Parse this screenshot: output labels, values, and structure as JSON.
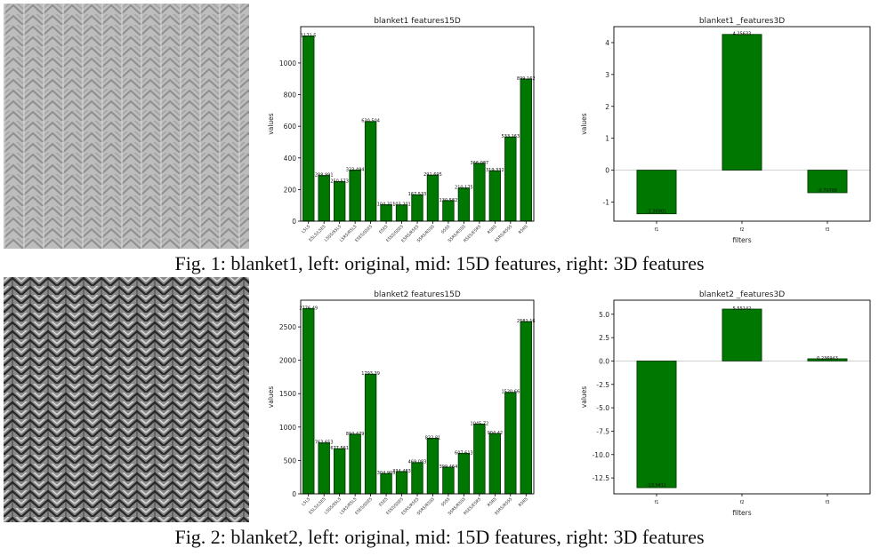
{
  "colors": {
    "bar": "#007700",
    "bar_edge": "#003300",
    "axis": "#000000"
  },
  "figures": [
    {
      "caption": "Fig. 1: blanket1, left: original, mid: 15D features, right: 3D features",
      "texture": {
        "alt": "blanket1 original texture",
        "contrast": "low"
      }
    },
    {
      "caption": "Fig. 2: blanket2, left: original, mid: 15D features, right: 3D features",
      "texture": {
        "alt": "blanket2 original texture",
        "contrast": "high"
      }
    }
  ],
  "chart_data": [
    {
      "type": "bar",
      "title": "blanket1 features15D",
      "xlabel": "",
      "ylabel": "values",
      "categories": [
        "L5L5",
        "E5L5/L5E5",
        "L5S5/S5L5",
        "L5R5/R5L5",
        "E5E5/S5E5",
        "E5E5",
        "E5S5/S5E5",
        "E5R5/R5E5",
        "S5R5/R5S5",
        "S5S5",
        "S5R5/R5S5",
        "R5E5/E5R5",
        "R5R5",
        "S5R5/R5S5",
        "R5R5"
      ],
      "values": [
        1171.5,
        288.991,
        250.573,
        323.494,
        630.504,
        104.311,
        103.201,
        167.533,
        291.695,
        130.582,
        210.175,
        366.087,
        319.332,
        533.163,
        899.162
      ],
      "data_labels": [
        "1171.5",
        "288.991",
        "250.573",
        "323.494",
        "630.504",
        "104.311",
        "103.201",
        "167.533",
        "291.695",
        "130.582",
        "210.175",
        "366.087",
        "319.332",
        "533.163",
        "899.162"
      ],
      "ylim": [
        0,
        1230
      ],
      "yticks": [
        0,
        200,
        400,
        600,
        800,
        1000
      ]
    },
    {
      "type": "bar",
      "title": "blanket1 _features3D",
      "xlabel": "filters",
      "ylabel": "values",
      "categories": [
        "f1",
        "f2",
        "f3"
      ],
      "values": [
        -1.36901,
        4.25633,
        -0.70766
      ],
      "data_labels": [
        "-1.36901",
        "4.25633",
        "-0.70766"
      ],
      "ylim": [
        -1.6,
        4.5
      ],
      "yticks": [
        -1,
        0,
        1,
        2,
        3,
        4
      ]
    },
    {
      "type": "bar",
      "title": "blanket2 features15D",
      "xlabel": "",
      "ylabel": "values",
      "categories": [
        "L5L5",
        "E5L5/L5E5",
        "L5S5/S5L5",
        "L5R5/R5L5",
        "E5E5/S5E5",
        "E5E5",
        "E5S5/S5E5",
        "E5R5/R5E5",
        "S5R5/R5S5",
        "S5S5",
        "S5R5/R5S5",
        "R5E5/E5R5",
        "R5R5",
        "S5R5/R5S5",
        "R5R5"
      ],
      "values": [
        2776.49,
        763.653,
        677.561,
        894.479,
        1793.39,
        304.905,
        334.483,
        469.083,
        832.81,
        399.464,
        607.613,
        1045.72,
        904.42,
        1520.66,
        2581.16
      ],
      "data_labels": [
        "2776.49",
        "763.653",
        "677.561",
        "894.479",
        "1793.39",
        "304.905",
        "334.483",
        "469.083",
        "832.81",
        "399.464",
        "607.613",
        "1045.72",
        "904.42",
        "1520.66",
        "2581.16"
      ],
      "ylim": [
        0,
        2900
      ],
      "yticks": [
        0,
        500,
        1000,
        1500,
        2000,
        2500
      ]
    },
    {
      "type": "bar",
      "title": "blanket2 _features3D",
      "xlabel": "filters",
      "ylabel": "values",
      "categories": [
        "f1",
        "f2",
        "f3"
      ],
      "values": [
        -13.5411,
        5.55142,
        0.236943
      ],
      "data_labels": [
        "-13.5411",
        "5.55142",
        "0.236943"
      ],
      "ylim": [
        -14.2,
        6.5
      ],
      "yticks": [
        -12.5,
        -10.0,
        -7.5,
        -5.0,
        -2.5,
        0.0,
        2.5,
        5.0
      ],
      "ytick_labels": [
        "-12.5",
        "-10.0",
        "-7.5",
        "-5.0",
        "-2.5",
        "0.0",
        "2.5",
        "5.0"
      ]
    }
  ]
}
